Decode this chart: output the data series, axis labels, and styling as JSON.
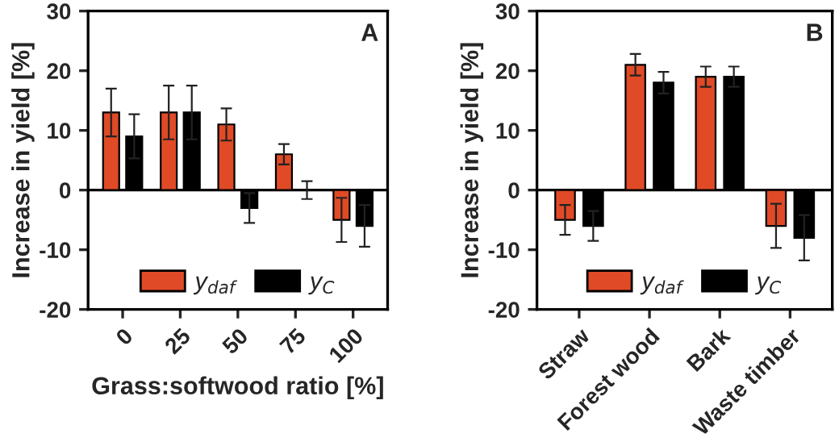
{
  "chart_data": [
    {
      "type": "bar",
      "xlabel": "Grass:softwood ratio [%]",
      "ylabel": "Increase in yield [%]",
      "categories": [
        "0",
        "25",
        "50",
        "75",
        "100"
      ],
      "series": [
        {
          "name": "y$_{daf}$",
          "color": "#e04a26",
          "values": [
            13,
            13,
            11,
            6,
            -5
          ],
          "errors": [
            4,
            4.5,
            2.7,
            1.7,
            3.7
          ]
        },
        {
          "name": "y$_{C}$",
          "color": "#000000",
          "values": [
            9,
            13,
            -3,
            0,
            -6
          ],
          "errors": [
            3.7,
            4.5,
            2.5,
            1.5,
            3.5
          ]
        }
      ],
      "ylim": [
        -20,
        30
      ],
      "yticks": [
        -20,
        -10,
        0,
        10,
        20,
        30
      ],
      "ref_lines": [
        {
          "axis": "y",
          "value": 0
        }
      ],
      "annotations": [
        "A"
      ],
      "legend": "bottom",
      "grid": false
    },
    {
      "type": "bar",
      "ylabel": "Increase in yield [%]",
      "categories": [
        "Straw",
        "Forest wood",
        "Bark",
        "Waste timber"
      ],
      "series": [
        {
          "name": "y$_{daf}$",
          "color": "#e04a26",
          "values": [
            -5,
            21,
            19,
            -6
          ],
          "errors": [
            2.5,
            1.8,
            1.7,
            3.7
          ]
        },
        {
          "name": "y$_{C}$",
          "color": "#000000",
          "values": [
            -6,
            18,
            19,
            -8
          ],
          "errors": [
            2.5,
            1.8,
            1.7,
            3.8
          ]
        }
      ],
      "ylim": [
        -20,
        30
      ],
      "yticks": [
        -20,
        -10,
        0,
        10,
        20,
        30
      ],
      "ref_lines": [
        {
          "axis": "y",
          "value": 0
        }
      ],
      "annotations": [
        "B"
      ],
      "legend": "bottom",
      "grid": false
    }
  ]
}
